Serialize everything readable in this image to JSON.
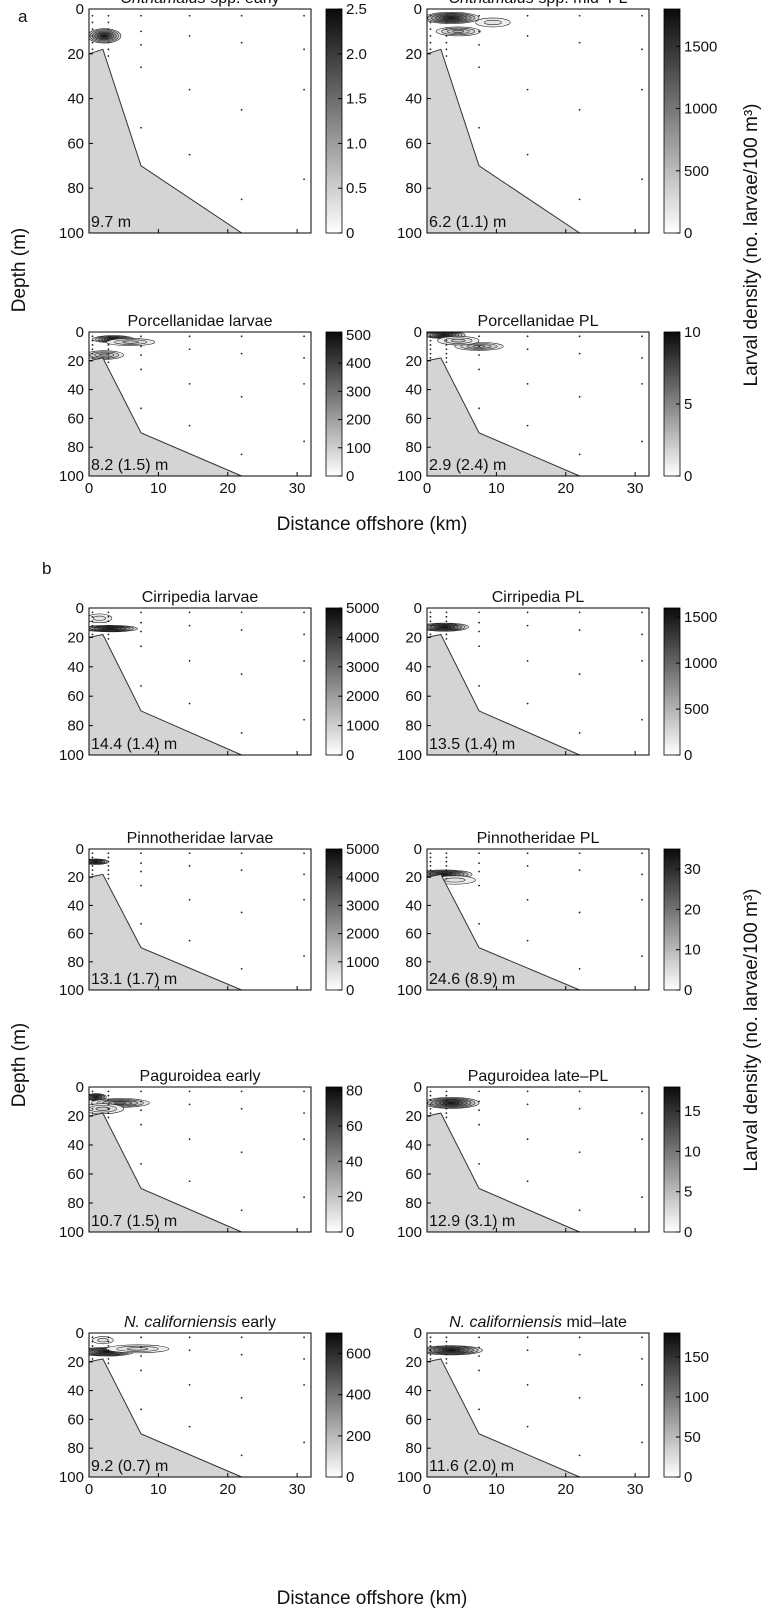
{
  "figure": {
    "panel_a_label": "a",
    "panel_b_label": "b",
    "y_axis_label": "Depth (m)",
    "x_axis_label": "Distance offshore (km)",
    "colorbar_label": "Larval density (no. larvae/100 m³)"
  },
  "chart_data": [
    {
      "type": "heatmap",
      "panel": "a",
      "title_italic": "Chthamalus",
      "title_rest": " spp. early",
      "annotation": "9.7 m",
      "cb_ticks": [
        "2.5",
        "2.0",
        "1.5",
        "1.0",
        "0.5",
        "0"
      ],
      "cb_max": 2.5,
      "blobs": [
        {
          "x": 2.2,
          "y": 12,
          "rx": 2.4,
          "ry": 3.2,
          "v": 2.4
        }
      ]
    },
    {
      "type": "heatmap",
      "panel": "a",
      "title_italic": "Chthamalus",
      "title_rest": " spp. mid–PL",
      "annotation": "6.2 (1.1) m",
      "cb_ticks": [
        "1500",
        "1000",
        "500",
        "0"
      ],
      "cb_max": 1800,
      "blobs": [
        {
          "x": 3.5,
          "y": 4,
          "rx": 4.0,
          "ry": 2.5,
          "v": 1700
        },
        {
          "x": 4.5,
          "y": 10,
          "rx": 3.2,
          "ry": 2.0,
          "v": 900
        },
        {
          "x": 9.5,
          "y": 6,
          "rx": 2.5,
          "ry": 2.0,
          "v": 400
        }
      ]
    },
    {
      "type": "heatmap",
      "panel": "a",
      "title_italic": "",
      "title_rest": "Porcellanidae larvae",
      "annotation": "8.2 (1.5) m",
      "cb_ticks": [
        "500",
        "400",
        "300",
        "200",
        "100",
        "0"
      ],
      "cb_max": 510,
      "blobs": [
        {
          "x": 3.5,
          "y": 5,
          "rx": 3.0,
          "ry": 2.5,
          "v": 480
        },
        {
          "x": 6,
          "y": 7,
          "rx": 3.5,
          "ry": 2.5,
          "v": 250
        },
        {
          "x": 2.2,
          "y": 16,
          "rx": 2.8,
          "ry": 3.0,
          "v": 300
        }
      ]
    },
    {
      "type": "heatmap",
      "panel": "a",
      "title_italic": "",
      "title_rest": "Porcellanidae PL",
      "annotation": "2.9 (2.4) m",
      "cb_ticks": [
        "10",
        "5",
        "0"
      ],
      "cb_max": 10,
      "blobs": [
        {
          "x": 2.5,
          "y": 2,
          "rx": 3.0,
          "ry": 2.5,
          "v": 9.5
        },
        {
          "x": 7.5,
          "y": 10,
          "rx": 3.5,
          "ry": 2.8,
          "v": 6
        },
        {
          "x": 4.5,
          "y": 6,
          "rx": 3.0,
          "ry": 3.0,
          "v": 4
        }
      ]
    },
    {
      "type": "heatmap",
      "panel": "b",
      "title_italic": "",
      "title_rest": "Cirripedia larvae",
      "annotation": "14.4 (1.4) m",
      "cb_ticks": [
        "5000",
        "4000",
        "3000",
        "2000",
        "1000",
        "0"
      ],
      "cb_max": 5000,
      "blobs": [
        {
          "x": 3,
          "y": 14,
          "rx": 4.0,
          "ry": 2.2,
          "v": 4800
        },
        {
          "x": 1.5,
          "y": 7,
          "rx": 1.8,
          "ry": 3.0,
          "v": 1500
        }
      ]
    },
    {
      "type": "heatmap",
      "panel": "b",
      "title_italic": "",
      "title_rest": "Cirripedia PL",
      "annotation": "13.5 (1.4) m",
      "cb_ticks": [
        "1500",
        "1000",
        "500",
        "0"
      ],
      "cb_max": 1600,
      "blobs": [
        {
          "x": 2.5,
          "y": 13,
          "rx": 3.5,
          "ry": 2.8,
          "v": 1550
        }
      ]
    },
    {
      "type": "heatmap",
      "panel": "b",
      "title_italic": "",
      "title_rest": "Pinnotheridae larvae",
      "annotation": "13.1 (1.7) m",
      "cb_ticks": [
        "5000",
        "4000",
        "3000",
        "2000",
        "1000",
        "0"
      ],
      "cb_max": 5000,
      "blobs": [
        {
          "x": 1.0,
          "y": 9,
          "rx": 1.8,
          "ry": 2.0,
          "v": 4900
        }
      ]
    },
    {
      "type": "heatmap",
      "panel": "b",
      "title_italic": "",
      "title_rest": "Pinnotheridae PL",
      "annotation": "24.6 (8.9) m",
      "cb_ticks": [
        "30",
        "20",
        "10",
        "0"
      ],
      "cb_max": 35,
      "blobs": [
        {
          "x": 2.5,
          "y": 18,
          "rx": 4.0,
          "ry": 3.2,
          "v": 34
        },
        {
          "x": 4,
          "y": 22,
          "rx": 3.0,
          "ry": 3.0,
          "v": 12
        }
      ]
    },
    {
      "type": "heatmap",
      "panel": "b",
      "title_italic": "",
      "title_rest": "Paguroidea early",
      "annotation": "10.7 (1.5) m",
      "cb_ticks": [
        "80",
        "60",
        "40",
        "20",
        "0"
      ],
      "cb_max": 82,
      "blobs": [
        {
          "x": 1.0,
          "y": 7,
          "rx": 1.5,
          "ry": 2.5,
          "v": 80
        },
        {
          "x": 4.5,
          "y": 11,
          "rx": 4.2,
          "ry": 3.0,
          "v": 55
        },
        {
          "x": 2,
          "y": 15,
          "rx": 3.0,
          "ry": 3.5,
          "v": 35
        }
      ]
    },
    {
      "type": "heatmap",
      "panel": "b",
      "title_italic": "",
      "title_rest": "Paguroidea late–PL",
      "annotation": "12.9 (3.1) m",
      "cb_ticks": [
        "15",
        "10",
        "5",
        "0"
      ],
      "cb_max": 18,
      "blobs": [
        {
          "x": 3.5,
          "y": 11,
          "rx": 4.0,
          "ry": 3.8,
          "v": 17.5
        }
      ]
    },
    {
      "type": "heatmap",
      "panel": "b",
      "title_italic": "N. californiensis",
      "title_rest": " early",
      "annotation": "9.2 (0.7) m",
      "cb_ticks": [
        "600",
        "400",
        "200",
        "0"
      ],
      "cb_max": 700,
      "blobs": [
        {
          "x": 2.5,
          "y": 13,
          "rx": 4.0,
          "ry": 3.0,
          "v": 690
        },
        {
          "x": 7,
          "y": 11,
          "rx": 4.5,
          "ry": 2.8,
          "v": 250
        },
        {
          "x": 2,
          "y": 5,
          "rx": 1.5,
          "ry": 2.5,
          "v": 200
        }
      ]
    },
    {
      "type": "heatmap",
      "panel": "b",
      "title_italic": "N. californiensis",
      "title_rest": " mid–late",
      "annotation": "11.6 (2.0) m",
      "cb_ticks": [
        "150",
        "100",
        "50",
        "0"
      ],
      "cb_max": 180,
      "blobs": [
        {
          "x": 3.5,
          "y": 12,
          "rx": 4.5,
          "ry": 3.2,
          "v": 175
        }
      ]
    }
  ],
  "axes": {
    "xlim": [
      0,
      32
    ],
    "ylim": [
      0,
      100
    ],
    "y_ticks": [
      "0",
      "20",
      "40",
      "60",
      "80",
      "100"
    ],
    "x_ticks": [
      "0",
      "10",
      "20",
      "30"
    ],
    "x_tick_values": [
      0,
      10,
      20,
      30
    ],
    "y_tick_values": [
      0,
      20,
      40,
      60,
      80,
      100
    ],
    "bathymetry_km_depth": [
      [
        0,
        20
      ],
      [
        2,
        18
      ],
      [
        7.5,
        70
      ],
      [
        22,
        100
      ]
    ],
    "stations": [
      {
        "x": 0.5,
        "depths": [
          3,
          6,
          9,
          12,
          15,
          18
        ]
      },
      {
        "x": 2.8,
        "depths": [
          3,
          6,
          9,
          12,
          15,
          18,
          21
        ]
      },
      {
        "x": 7.5,
        "depths": [
          3,
          10,
          16,
          26,
          53
        ]
      },
      {
        "x": 14.5,
        "depths": [
          3,
          12,
          36,
          65
        ]
      },
      {
        "x": 22,
        "depths": [
          3,
          15,
          45,
          85
        ]
      },
      {
        "x": 31,
        "depths": [
          3,
          18,
          36,
          76
        ]
      }
    ]
  }
}
